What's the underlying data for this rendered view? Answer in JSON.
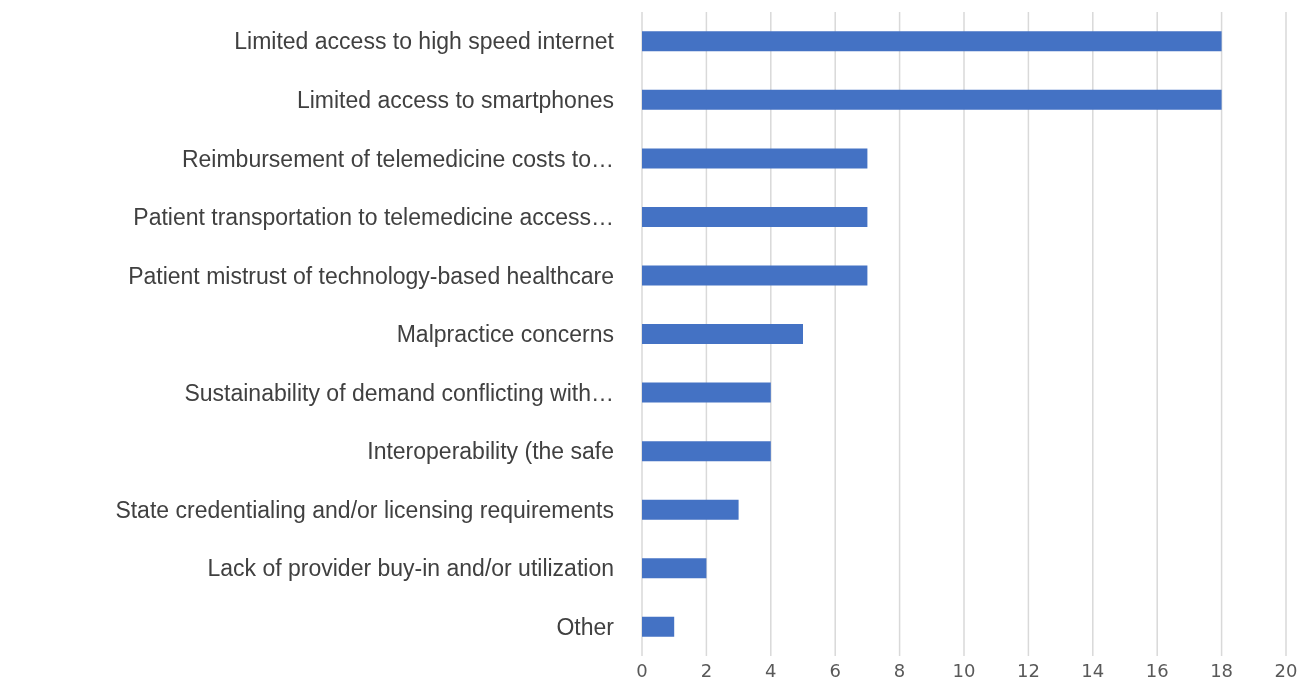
{
  "chart_data": {
    "type": "bar",
    "orientation": "horizontal",
    "categories": [
      "Limited access to high speed internet",
      "Limited access to smartphones",
      "Reimbursement of telemedicine costs to…",
      "Patient transportation to telemedicine access…",
      "Patient mistrust of technology-based healthcare",
      "Malpractice concerns",
      "Sustainability of demand conflicting with…",
      "Interoperability (the safe",
      "State credentialing and/or licensing requirements",
      "Lack of provider buy-in and/or utilization",
      "Other"
    ],
    "values": [
      18,
      18,
      7,
      7,
      7,
      5,
      4,
      4,
      3,
      2,
      1
    ],
    "color": "#4472c4",
    "xlim": [
      0,
      20
    ],
    "xticks": [
      0,
      2,
      4,
      6,
      8,
      10,
      12,
      14,
      16,
      18,
      20
    ],
    "grid": "x"
  }
}
